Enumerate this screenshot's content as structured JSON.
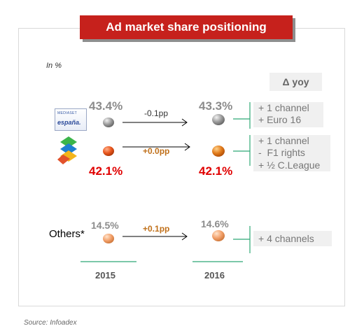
{
  "title": "Ad market share positioning",
  "unit_note": "In %",
  "delta_header": "Δ yoy",
  "others_label": "Others*",
  "mediaset_logo": {
    "line1": "MEDIASET",
    "line2": "españa."
  },
  "years": [
    "2015",
    "2016"
  ],
  "source": "Source: Infoadex",
  "colors": {
    "banner": "#c6211c",
    "mediaset_value": "#8c8c8c",
    "atresmedia_value": "#e00000",
    "delta_line": "#2ea876",
    "mediaset_dot": "#9a9a9a",
    "atresmedia_dot": "#e07a1a",
    "others_dot": "#f2a06a"
  },
  "chart_data": {
    "type": "table",
    "title": "Ad market share positioning",
    "unit": "In %",
    "columns": [
      "2015",
      "2016",
      "Δ yoy"
    ],
    "rows": [
      {
        "group": "Mediaset España",
        "values": {
          "2015": "43.4%",
          "2016": "43.3%"
        },
        "change": "-0.1pp",
        "delta": [
          "+ 1 channel",
          "+ Euro 16"
        ]
      },
      {
        "group": "Atresmedia",
        "values": {
          "2015": "42.1%",
          "2016": "42.1%"
        },
        "change": "+0.0pp",
        "delta": [
          "+ 1 channel",
          "-  F1 rights",
          "+ ½ C.League"
        ]
      },
      {
        "group": "Others*",
        "values": {
          "2015": "14.5%",
          "2016": "14.6%"
        },
        "change": "+0.1pp",
        "delta": [
          "+ 4 channels"
        ]
      }
    ]
  }
}
